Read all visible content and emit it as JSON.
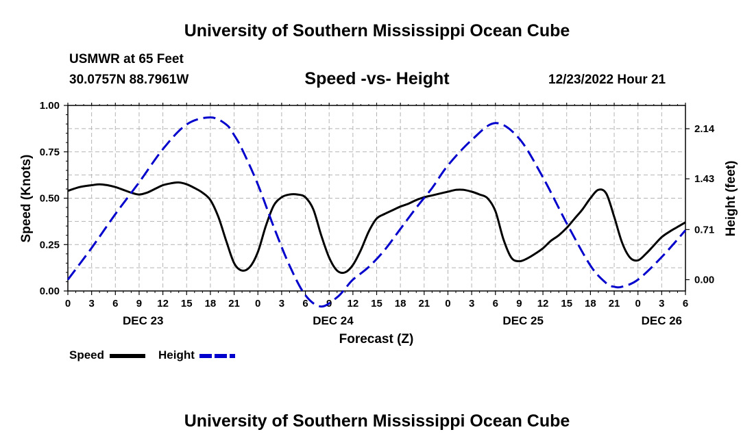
{
  "header": {
    "title": "University of Southern Mississippi Ocean Cube",
    "station": "USMWR at 65 Feet",
    "coords": "30.0757N  88.7961W",
    "datetime": "12/23/2022 Hour 21",
    "footer_title": "University of Southern Mississippi Ocean Cube"
  },
  "legend": {
    "speed_label": "Speed",
    "height_label": "Height"
  },
  "chart_data": {
    "type": "line",
    "title": "Speed -vs- Height",
    "xlabel": "Forecast (Z)",
    "ylabel_left": "Speed (Knots)",
    "ylabel_right": "Height (feet)",
    "x_range_hours": [
      0,
      78
    ],
    "x_tick_step_hours": 3,
    "x_tick_labels": [
      "0",
      "3",
      "6",
      "9",
      "12",
      "15",
      "18",
      "21",
      "0",
      "3",
      "6",
      "9",
      "12",
      "15",
      "18",
      "21",
      "0",
      "3",
      "6",
      "9",
      "12",
      "15",
      "18",
      "21",
      "0",
      "3",
      "6"
    ],
    "day_labels": [
      {
        "label": "DEC 23",
        "hour": 9.5
      },
      {
        "label": "DEC 24",
        "hour": 33.5
      },
      {
        "label": "DEC 25",
        "hour": 57.5
      },
      {
        "label": "DEC 26",
        "hour": 75
      }
    ],
    "y_left": {
      "min": 0,
      "max": 1,
      "ticks": [
        "0.00",
        "0.25",
        "0.50",
        "0.75",
        "1.00"
      ]
    },
    "y_right": {
      "min": -0.16,
      "max": 2.47,
      "ticks": [
        "0.00",
        "0.71",
        "1.43",
        "2.14"
      ]
    },
    "grid": true,
    "series": [
      {
        "name": "Speed",
        "axis": "left",
        "color": "#000000",
        "dash": "solid",
        "x": [
          0,
          1.5,
          3,
          4,
          5,
          6,
          7,
          8,
          9,
          10,
          11,
          12,
          13,
          14,
          15,
          16,
          17,
          18,
          19,
          20,
          21,
          22,
          23,
          24,
          25,
          26,
          27,
          28,
          29,
          30,
          31,
          32,
          33,
          34,
          35,
          36,
          37,
          38,
          39,
          40,
          41,
          42,
          43,
          44,
          45,
          46,
          47,
          48,
          49,
          50,
          51,
          52,
          53,
          54,
          55,
          56,
          57,
          58,
          59,
          60,
          61,
          62,
          63,
          64,
          65,
          66,
          67,
          68,
          69,
          70,
          71,
          72,
          73,
          74,
          75,
          76,
          77,
          78
        ],
        "y": [
          0.54,
          0.56,
          0.57,
          0.575,
          0.57,
          0.56,
          0.545,
          0.53,
          0.52,
          0.53,
          0.55,
          0.57,
          0.58,
          0.585,
          0.575,
          0.555,
          0.53,
          0.49,
          0.4,
          0.27,
          0.15,
          0.11,
          0.13,
          0.21,
          0.35,
          0.46,
          0.505,
          0.52,
          0.52,
          0.505,
          0.44,
          0.3,
          0.18,
          0.11,
          0.1,
          0.14,
          0.22,
          0.32,
          0.39,
          0.415,
          0.435,
          0.455,
          0.47,
          0.49,
          0.505,
          0.515,
          0.525,
          0.535,
          0.545,
          0.545,
          0.535,
          0.52,
          0.5,
          0.43,
          0.28,
          0.18,
          0.16,
          0.175,
          0.2,
          0.23,
          0.27,
          0.3,
          0.34,
          0.39,
          0.44,
          0.5,
          0.545,
          0.525,
          0.4,
          0.26,
          0.18,
          0.165,
          0.2,
          0.245,
          0.29,
          0.32,
          0.345,
          0.37
        ]
      },
      {
        "name": "Height",
        "axis": "right",
        "color": "#0000cc",
        "dash": "dashed",
        "x": [
          0,
          3,
          6,
          9,
          12,
          15,
          18,
          20,
          21,
          22,
          24,
          26,
          28,
          30,
          32,
          34,
          35,
          36,
          38,
          40,
          42,
          44,
          46,
          48,
          51,
          54,
          57,
          60,
          63,
          66,
          68,
          69,
          70,
          72,
          75,
          78
        ],
        "y": [
          0.0,
          0.45,
          0.93,
          1.38,
          1.85,
          2.2,
          2.3,
          2.2,
          2.05,
          1.85,
          1.35,
          0.75,
          0.2,
          -0.22,
          -0.38,
          -0.25,
          -0.13,
          0.0,
          0.18,
          0.42,
          0.72,
          1.02,
          1.3,
          1.62,
          1.98,
          2.22,
          2.0,
          1.45,
          0.8,
          0.2,
          -0.05,
          -0.1,
          -0.1,
          0.0,
          0.32,
          0.7
        ]
      }
    ]
  }
}
